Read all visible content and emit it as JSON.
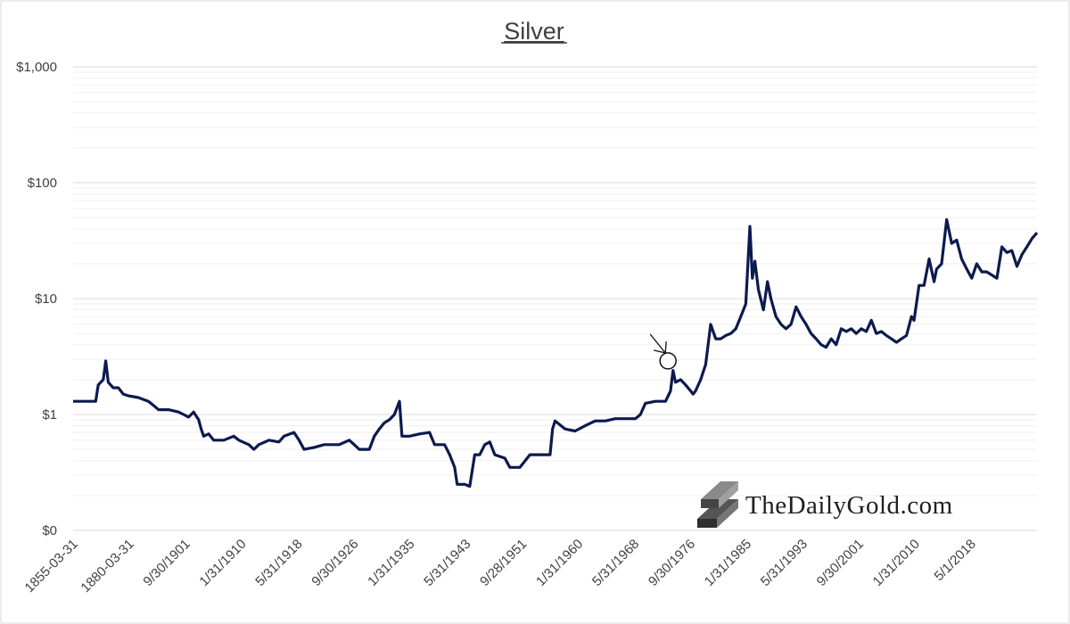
{
  "chart_data": {
    "type": "line",
    "title": "Silver",
    "xlabel": "",
    "ylabel": "",
    "yscale": "log",
    "ylim": [
      0.1,
      1000
    ],
    "y_tick_values": [
      0.1,
      1,
      10,
      100,
      1000
    ],
    "y_tick_labels": [
      "$0",
      "$1",
      "$10",
      "$100",
      "$1,000"
    ],
    "x_tick_labels": [
      "1855-03-31",
      "1880-03-31",
      "9/30/1901",
      "1/31/1910",
      "5/31/1918",
      "9/30/1926",
      "1/31/1935",
      "5/31/1943",
      "9/28/1951",
      "1/31/1960",
      "5/31/1968",
      "9/30/1976",
      "1/31/1985",
      "5/31/1993",
      "9/30/2001",
      "1/31/2010",
      "5/1/2018"
    ],
    "grid": "horizontal",
    "legend": "none",
    "line_color": "#0d1a4f",
    "annotation": {
      "x": 1973.5,
      "y": 2.9,
      "shape": "circle-with-arrow"
    },
    "series": [
      {
        "values": [
          [
            1855,
            1.3
          ],
          [
            1859.5,
            1.3
          ],
          [
            1860,
            1.8
          ],
          [
            1861,
            2.0
          ],
          [
            1861.5,
            2.9
          ],
          [
            1862,
            1.9
          ],
          [
            1863,
            1.7
          ],
          [
            1864,
            1.7
          ],
          [
            1865,
            1.5
          ],
          [
            1866,
            1.45
          ],
          [
            1868,
            1.4
          ],
          [
            1870,
            1.3
          ],
          [
            1871,
            1.2
          ],
          [
            1872,
            1.1
          ],
          [
            1874,
            1.1
          ],
          [
            1876,
            1.05
          ],
          [
            1877,
            1.0
          ],
          [
            1878,
            0.95
          ],
          [
            1879,
            1.05
          ],
          [
            1880,
            0.9
          ],
          [
            1880.5,
            0.75
          ],
          [
            1881,
            0.65
          ],
          [
            1882,
            0.68
          ],
          [
            1883,
            0.6
          ],
          [
            1885,
            0.6
          ],
          [
            1887,
            0.65
          ],
          [
            1888,
            0.6
          ],
          [
            1890,
            0.55
          ],
          [
            1891,
            0.5
          ],
          [
            1892,
            0.55
          ],
          [
            1894,
            0.6
          ],
          [
            1896,
            0.58
          ],
          [
            1897,
            0.65
          ],
          [
            1899,
            0.7
          ],
          [
            1900,
            0.6
          ],
          [
            1901,
            0.5
          ],
          [
            1903,
            0.52
          ],
          [
            1905,
            0.55
          ],
          [
            1906,
            0.55
          ],
          [
            1908,
            0.55
          ],
          [
            1910,
            0.6
          ],
          [
            1911,
            0.55
          ],
          [
            1912,
            0.5
          ],
          [
            1914,
            0.5
          ],
          [
            1915,
            0.65
          ],
          [
            1916,
            0.75
          ],
          [
            1917,
            0.85
          ],
          [
            1918,
            0.9
          ],
          [
            1919,
            1.0
          ],
          [
            1920,
            1.3
          ],
          [
            1920.5,
            0.65
          ],
          [
            1922,
            0.65
          ],
          [
            1924,
            0.68
          ],
          [
            1926,
            0.7
          ],
          [
            1927,
            0.55
          ],
          [
            1929,
            0.55
          ],
          [
            1930,
            0.45
          ],
          [
            1931,
            0.35
          ],
          [
            1931.5,
            0.25
          ],
          [
            1933,
            0.25
          ],
          [
            1934,
            0.24
          ],
          [
            1935,
            0.45
          ],
          [
            1936,
            0.45
          ],
          [
            1937,
            0.55
          ],
          [
            1938,
            0.58
          ],
          [
            1939,
            0.45
          ],
          [
            1941,
            0.42
          ],
          [
            1942,
            0.35
          ],
          [
            1944,
            0.35
          ],
          [
            1946,
            0.45
          ],
          [
            1948,
            0.45
          ],
          [
            1950,
            0.45
          ],
          [
            1950.5,
            0.75
          ],
          [
            1951,
            0.88
          ],
          [
            1953,
            0.75
          ],
          [
            1955,
            0.72
          ],
          [
            1957,
            0.8
          ],
          [
            1959,
            0.88
          ],
          [
            1961,
            0.88
          ],
          [
            1963,
            0.92
          ],
          [
            1965,
            0.92
          ],
          [
            1967,
            0.92
          ],
          [
            1968,
            1.0
          ],
          [
            1969,
            1.25
          ],
          [
            1971,
            1.3
          ],
          [
            1973,
            1.3
          ],
          [
            1974,
            1.6
          ],
          [
            1974.5,
            2.4
          ],
          [
            1975,
            1.9
          ],
          [
            1976,
            2.0
          ],
          [
            1977,
            1.8
          ],
          [
            1978,
            1.6
          ],
          [
            1978.5,
            1.5
          ],
          [
            1979,
            1.6
          ],
          [
            1980,
            2.0
          ],
          [
            1981,
            2.7
          ],
          [
            1982,
            6.0
          ],
          [
            1983,
            4.5
          ],
          [
            1984,
            4.5
          ],
          [
            1985,
            4.8
          ],
          [
            1986,
            5.0
          ],
          [
            1987,
            5.5
          ],
          [
            1988,
            7.0
          ],
          [
            1989,
            9.0
          ],
          [
            1989.8,
            42.0
          ],
          [
            1990.3,
            15.0
          ],
          [
            1990.8,
            21.0
          ],
          [
            1991.5,
            12.0
          ],
          [
            1992.5,
            8.0
          ],
          [
            1993.3,
            14.0
          ],
          [
            1994,
            10.0
          ],
          [
            1995,
            7.0
          ],
          [
            1996,
            6.0
          ],
          [
            1997,
            5.5
          ],
          [
            1998,
            6.0
          ],
          [
            1999,
            8.5
          ],
          [
            2000,
            7.0
          ],
          [
            2001,
            6.0
          ],
          [
            2002,
            5.0
          ],
          [
            2003,
            4.5
          ],
          [
            2004,
            4.0
          ],
          [
            2005,
            3.8
          ],
          [
            2006,
            4.5
          ],
          [
            2007,
            4.0
          ],
          [
            2008,
            5.5
          ],
          [
            2009,
            5.2
          ],
          [
            2010,
            5.5
          ],
          [
            2011,
            5.0
          ],
          [
            2012,
            5.5
          ],
          [
            2013,
            5.2
          ],
          [
            2014,
            6.5
          ],
          [
            2015,
            5.0
          ],
          [
            2016,
            5.2
          ],
          [
            2017,
            4.8
          ],
          [
            2018,
            4.5
          ],
          [
            2019,
            4.2
          ],
          [
            2020,
            4.5
          ],
          [
            2021,
            4.8
          ],
          [
            2022,
            7.0
          ],
          [
            2022.5,
            6.5
          ],
          [
            2023.5,
            13.0
          ],
          [
            2024.5,
            13.0
          ],
          [
            2025.5,
            22.0
          ],
          [
            2026.5,
            14.0
          ],
          [
            2027,
            18.0
          ],
          [
            2028,
            20.0
          ],
          [
            2029,
            48.0
          ],
          [
            2030,
            30.0
          ],
          [
            2031,
            32.0
          ],
          [
            2032,
            22.0
          ],
          [
            2033,
            18.0
          ],
          [
            2034,
            15.0
          ],
          [
            2035,
            20.0
          ],
          [
            2036,
            17.0
          ],
          [
            2037,
            17.0
          ],
          [
            2038,
            16.0
          ],
          [
            2039,
            15.0
          ],
          [
            2040,
            28.0
          ],
          [
            2041,
            25.0
          ],
          [
            2042,
            26.0
          ],
          [
            2043,
            19.0
          ],
          [
            2044,
            24.0
          ],
          [
            2045,
            28.0
          ],
          [
            2046,
            33.0
          ],
          [
            2047,
            37.0
          ]
        ]
      }
    ]
  },
  "watermark": {
    "text": "TheDailyGold.com"
  }
}
